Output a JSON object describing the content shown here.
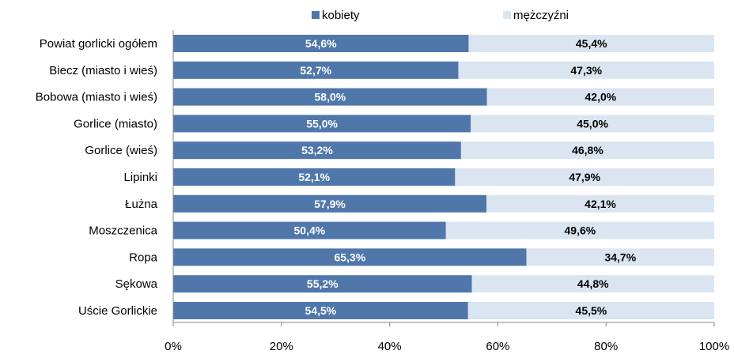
{
  "chart_data": {
    "type": "bar",
    "orientation": "horizontal",
    "stacked": "percent",
    "categories": [
      "Powiat gorlicki ogółem",
      "Biecz (miasto  i wieś)",
      "Bobowa (miasto  i wieś)",
      "Gorlice (miasto)",
      "Gorlice (wieś)",
      "Lipinki",
      "Łużna",
      "Moszczenica",
      "Ropa",
      "Sękowa",
      "Uście Gorlickie"
    ],
    "series": [
      {
        "name": "kobiety",
        "color": "#4f77aa",
        "values": [
          54.6,
          52.7,
          58.0,
          55.0,
          53.2,
          52.1,
          57.9,
          50.4,
          65.3,
          55.2,
          54.5
        ],
        "labels": [
          "54,6%",
          "52,7%",
          "58,0%",
          "55,0%",
          "53,2%",
          "52,1%",
          "57,9%",
          "50,4%",
          "65,3%",
          "55,2%",
          "54,5%"
        ]
      },
      {
        "name": "mężczyźni",
        "color": "#dbe5f1",
        "values": [
          45.4,
          47.3,
          42.0,
          45.0,
          46.8,
          47.9,
          42.1,
          49.6,
          34.7,
          44.8,
          45.5
        ],
        "labels": [
          "45,4%",
          "47,3%",
          "42,0%",
          "45,0%",
          "46,8%",
          "47,9%",
          "42,1%",
          "49,6%",
          "34,7%",
          "44,8%",
          "45,5%"
        ]
      }
    ],
    "xlim": [
      0,
      100
    ],
    "xticks": [
      "0%",
      "20%",
      "40%",
      "60%",
      "80%",
      "100%"
    ],
    "legend": "top",
    "grid": false
  }
}
